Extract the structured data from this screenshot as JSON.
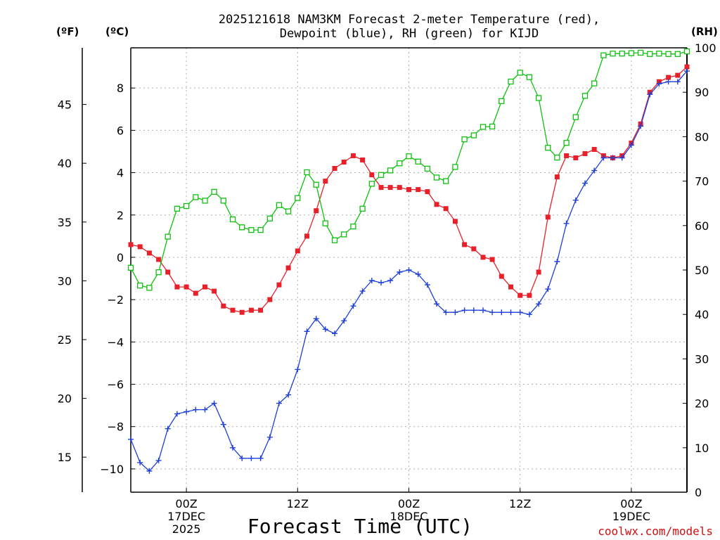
{
  "header": {
    "title_line1": "2025121618 NAM3KM Forecast 2-meter Temperature (red),",
    "title_line2": "Dewpoint (blue), RH (green) for KIJD"
  },
  "axes": {
    "left_outer_unit": "(ºF)",
    "left_inner_unit": "(ºC)",
    "right_unit": "(RH)",
    "x_title": "Forecast Time (UTC)"
  },
  "credit": "coolwx.com/models",
  "colors": {
    "temperature": "#e8202a",
    "dewpoint": "#1e3fd8",
    "rh": "#10c010",
    "grid": "#b0b0b0",
    "credit": "#d01010"
  },
  "chart_data": {
    "type": "line",
    "title": "2025121618 NAM3KM Forecast 2-meter Temperature (red), Dewpoint (blue), RH (green) for KIJD",
    "xlabel": "Forecast Time (UTC)",
    "x_unit": "forecast hour from 2025-12-16 18Z",
    "x": [
      0,
      1,
      2,
      3,
      4,
      5,
      6,
      7,
      8,
      9,
      10,
      11,
      12,
      13,
      14,
      15,
      16,
      17,
      18,
      19,
      20,
      21,
      22,
      23,
      24,
      25,
      26,
      27,
      28,
      29,
      30,
      31,
      32,
      33,
      34,
      35,
      36,
      37,
      38,
      39,
      40,
      41,
      42,
      43,
      44,
      45,
      46,
      47,
      48,
      49,
      50,
      51,
      52,
      53,
      54,
      55,
      56,
      57,
      58,
      59,
      60
    ],
    "xlim": [
      0,
      60
    ],
    "x_ticks": [
      {
        "hour": 6,
        "lines": [
          "00Z",
          "17DEC",
          "2025"
        ]
      },
      {
        "hour": 18,
        "lines": [
          "12Z"
        ]
      },
      {
        "hour": 30,
        "lines": [
          "00Z",
          "18DEC"
        ]
      },
      {
        "hour": 42,
        "lines": [
          "12Z"
        ]
      },
      {
        "hour": 54,
        "lines": [
          "00Z",
          "19DEC"
        ]
      }
    ],
    "y_celsius": {
      "label": "(ºC)",
      "lim": [
        -11.1,
        9.9
      ],
      "ticks": [
        -10,
        -8,
        -6,
        -4,
        -2,
        0,
        2,
        4,
        6,
        8
      ]
    },
    "y_fahrenheit": {
      "label": "(ºF)",
      "ticks": [
        15,
        20,
        25,
        30,
        35,
        40,
        45
      ]
    },
    "y_rh": {
      "label": "(RH)",
      "lim": [
        0,
        100
      ],
      "ticks": [
        0,
        10,
        20,
        30,
        40,
        50,
        60,
        70,
        80,
        90,
        100
      ]
    },
    "grid": true,
    "series": [
      {
        "name": "Temperature",
        "axis": "celsius",
        "color": "red",
        "marker": "filled-square",
        "values": [
          0.6,
          0.5,
          0.2,
          -0.1,
          -0.7,
          -1.4,
          -1.4,
          -1.7,
          -1.4,
          -1.6,
          -2.3,
          -2.5,
          -2.6,
          -2.5,
          -2.5,
          -2.0,
          -1.3,
          -0.5,
          0.3,
          1.0,
          2.2,
          3.6,
          4.2,
          4.5,
          4.8,
          4.6,
          3.9,
          3.3,
          3.3,
          3.3,
          3.2,
          3.2,
          3.1,
          2.5,
          2.3,
          1.7,
          0.6,
          0.4,
          0.0,
          -0.1,
          -0.9,
          -1.4,
          -1.8,
          -1.8,
          -0.7,
          1.9,
          3.8,
          4.8,
          4.7,
          4.9,
          5.1,
          4.8,
          4.7,
          4.8,
          5.4,
          6.3,
          7.8,
          8.3,
          8.5,
          8.6,
          9.0
        ]
      },
      {
        "name": "Dewpoint",
        "axis": "celsius",
        "color": "blue",
        "marker": "plus",
        "values": [
          -8.6,
          -9.7,
          -10.1,
          -9.6,
          -8.1,
          -7.4,
          -7.3,
          -7.2,
          -7.2,
          -6.9,
          -7.9,
          -9.0,
          -9.5,
          -9.5,
          -9.5,
          -8.5,
          -6.9,
          -6.5,
          -5.3,
          -3.5,
          -2.9,
          -3.4,
          -3.6,
          -3.0,
          -2.3,
          -1.6,
          -1.1,
          -1.2,
          -1.1,
          -0.7,
          -0.6,
          -0.8,
          -1.3,
          -2.2,
          -2.6,
          -2.6,
          -2.5,
          -2.5,
          -2.5,
          -2.6,
          -2.6,
          -2.6,
          -2.6,
          -2.7,
          -2.2,
          -1.5,
          -0.2,
          1.6,
          2.7,
          3.5,
          4.1,
          4.7,
          4.7,
          4.7,
          5.3,
          6.2,
          7.7,
          8.2,
          8.3,
          8.3,
          8.8
        ]
      },
      {
        "name": "Relative Humidity",
        "axis": "rh",
        "color": "green",
        "marker": "open-square",
        "values": [
          50.5,
          46.5,
          46.0,
          49.5,
          57.5,
          63.8,
          64.4,
          66.4,
          65.6,
          67.6,
          65.6,
          61.4,
          59.6,
          59.0,
          59.0,
          61.6,
          64.6,
          63.2,
          66.2,
          72.0,
          69.2,
          60.5,
          56.7,
          58.0,
          59.8,
          63.8,
          69.4,
          71.4,
          72.4,
          74.0,
          75.6,
          74.4,
          72.8,
          70.8,
          70.0,
          73.2,
          79.4,
          80.3,
          82.2,
          82.3,
          88.0,
          92.4,
          94.4,
          93.4,
          88.7,
          77.5,
          75.3,
          78.6,
          84.4,
          89.2,
          92.0,
          98.3,
          98.7,
          98.7,
          98.8,
          98.9,
          98.6,
          98.7,
          98.6,
          98.6,
          99.2
        ]
      }
    ]
  }
}
